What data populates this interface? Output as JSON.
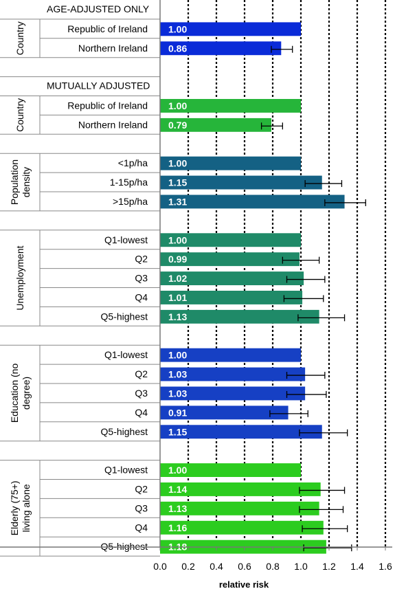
{
  "chart_data": {
    "type": "bar",
    "orientation": "horizontal",
    "xlabel": "relative risk",
    "xlim": [
      0,
      1.6
    ],
    "xticks": [
      "0.0",
      "0.2",
      "0.4",
      "0.6",
      "0.8",
      "1.0",
      "1.2",
      "1.4",
      "1.6"
    ],
    "grid": "vertical dotted",
    "sections": [
      {
        "heading": "AGE-ADJUSTED ONLY",
        "groups": [
          {
            "label": "Country",
            "color": "#0a2bd8",
            "bars": [
              {
                "category": "Republic of Ireland",
                "value": 1.0,
                "label": "1.00"
              },
              {
                "category": "Northern Ireland",
                "value": 0.86,
                "label": "0.86",
                "ci": [
                  0.79,
                  0.94
                ]
              }
            ]
          }
        ]
      },
      {
        "heading": "MUTUALLY ADJUSTED",
        "groups": [
          {
            "label": "Country",
            "color": "#26b53a",
            "bars": [
              {
                "category": "Republic of Ireland",
                "value": 1.0,
                "label": "1.00"
              },
              {
                "category": "Northern Ireland",
                "value": 0.79,
                "label": "0.79",
                "ci": [
                  0.72,
                  0.87
                ]
              }
            ]
          },
          {
            "label": "Population density",
            "color": "#146184",
            "bars": [
              {
                "category": "<1p/ha",
                "value": 1.0,
                "label": "1.00"
              },
              {
                "category": "1-15p/ha",
                "value": 1.15,
                "label": "1.15",
                "ci": [
                  1.03,
                  1.29
                ]
              },
              {
                "category": ">15p/ha",
                "value": 1.31,
                "label": "1.31",
                "ci": [
                  1.17,
                  1.46
                ]
              }
            ]
          },
          {
            "label": "Unemployment",
            "color": "#1f8a68",
            "bars": [
              {
                "category": "Q1-lowest",
                "value": 1.0,
                "label": "1.00"
              },
              {
                "category": "Q2",
                "value": 0.99,
                "label": "0.99",
                "ci": [
                  0.87,
                  1.13
                ]
              },
              {
                "category": "Q3",
                "value": 1.02,
                "label": "1.02",
                "ci": [
                  0.9,
                  1.17
                ]
              },
              {
                "category": "Q4",
                "value": 1.01,
                "label": "1.01",
                "ci": [
                  0.88,
                  1.16
                ]
              },
              {
                "category": "Q5-highest",
                "value": 1.13,
                "label": "1.13",
                "ci": [
                  0.98,
                  1.31
                ]
              }
            ]
          },
          {
            "label": "Education (no degree)",
            "color": "#1640c4",
            "bars": [
              {
                "category": "Q1-lowest",
                "value": 1.0,
                "label": "1.00"
              },
              {
                "category": "Q2",
                "value": 1.03,
                "label": "1.03",
                "ci": [
                  0.9,
                  1.17
                ]
              },
              {
                "category": "Q3",
                "value": 1.03,
                "label": "1.03",
                "ci": [
                  0.9,
                  1.18
                ]
              },
              {
                "category": "Q4",
                "value": 0.91,
                "label": "0.91",
                "ci": [
                  0.78,
                  1.05
                ]
              },
              {
                "category": "Q5-highest",
                "value": 1.15,
                "label": "1.15",
                "ci": [
                  0.99,
                  1.33
                ]
              }
            ]
          },
          {
            "label": "Elderly (75+) living alone",
            "color": "#2ccc1f",
            "bars": [
              {
                "category": "Q1-lowest",
                "value": 1.0,
                "label": "1.00"
              },
              {
                "category": "Q2",
                "value": 1.14,
                "label": "1.14",
                "ci": [
                  0.99,
                  1.31
                ]
              },
              {
                "category": "Q3",
                "value": 1.13,
                "label": "1.13",
                "ci": [
                  0.99,
                  1.3
                ]
              },
              {
                "category": "Q4",
                "value": 1.16,
                "label": "1.16",
                "ci": [
                  1.01,
                  1.33
                ]
              },
              {
                "category": "Q5-highest",
                "value": 1.18,
                "label": "1.18",
                "ci": [
                  1.02,
                  1.36
                ]
              }
            ]
          }
        ]
      }
    ]
  }
}
